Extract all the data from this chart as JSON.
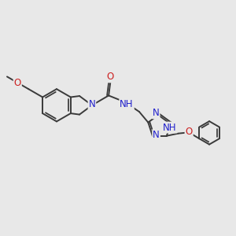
{
  "bg_color": "#e8e8e8",
  "bond_color": "#3a3a3a",
  "bond_width": 1.4,
  "atom_colors": {
    "N": "#2020cc",
    "O": "#cc2020",
    "C": "#3a3a3a"
  },
  "font_size_atom": 8.5,
  "fig_size": [
    3.0,
    3.0
  ],
  "dpi": 100
}
